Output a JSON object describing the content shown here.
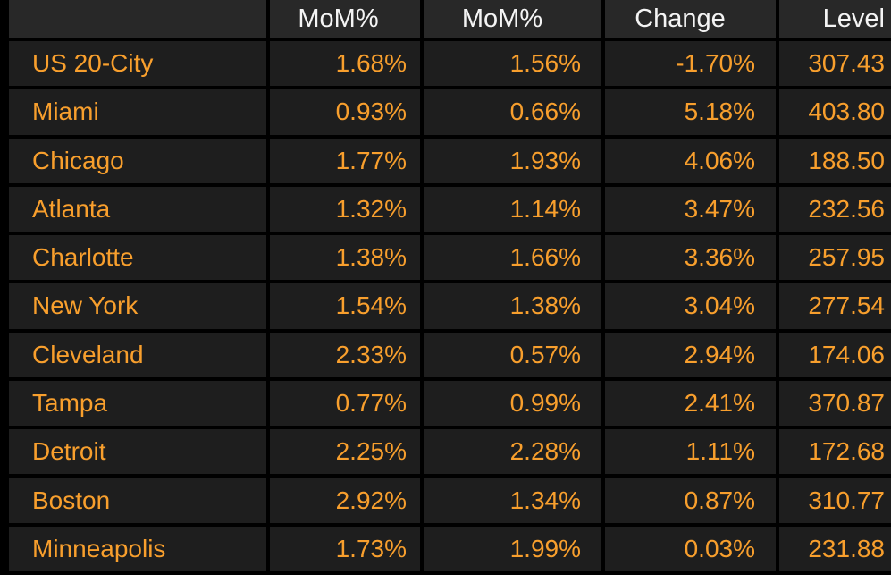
{
  "colors": {
    "background": "#000000",
    "cell_background": "#1e1e1e",
    "header_background": "#282828",
    "header_text": "#f4f4f4",
    "value_text": "#f89f2d"
  },
  "table": {
    "columns": [
      {
        "label": ""
      },
      {
        "label": "MoM%"
      },
      {
        "label": "MoM%"
      },
      {
        "label": "Change"
      },
      {
        "label": "Level"
      }
    ],
    "rows": [
      {
        "city": "US 20-City",
        "mom1": "1.68%",
        "mom2": "1.56%",
        "change": "-1.70%",
        "level": "307.43"
      },
      {
        "city": "Miami",
        "mom1": "0.93%",
        "mom2": "0.66%",
        "change": "5.18%",
        "level": "403.80"
      },
      {
        "city": "Chicago",
        "mom1": "1.77%",
        "mom2": "1.93%",
        "change": "4.06%",
        "level": "188.50"
      },
      {
        "city": "Atlanta",
        "mom1": "1.32%",
        "mom2": "1.14%",
        "change": "3.47%",
        "level": "232.56"
      },
      {
        "city": "Charlotte",
        "mom1": "1.38%",
        "mom2": "1.66%",
        "change": "3.36%",
        "level": "257.95"
      },
      {
        "city": "New York",
        "mom1": "1.54%",
        "mom2": "1.38%",
        "change": "3.04%",
        "level": "277.54"
      },
      {
        "city": "Cleveland",
        "mom1": "2.33%",
        "mom2": "0.57%",
        "change": "2.94%",
        "level": "174.06"
      },
      {
        "city": "Tampa",
        "mom1": "0.77%",
        "mom2": "0.99%",
        "change": "2.41%",
        "level": "370.87"
      },
      {
        "city": "Detroit",
        "mom1": "2.25%",
        "mom2": "2.28%",
        "change": "1.11%",
        "level": "172.68"
      },
      {
        "city": "Boston",
        "mom1": "2.92%",
        "mom2": "1.34%",
        "change": "0.87%",
        "level": "310.77"
      },
      {
        "city": "Minneapolis",
        "mom1": "1.73%",
        "mom2": "1.99%",
        "change": "0.03%",
        "level": "231.88"
      }
    ]
  }
}
